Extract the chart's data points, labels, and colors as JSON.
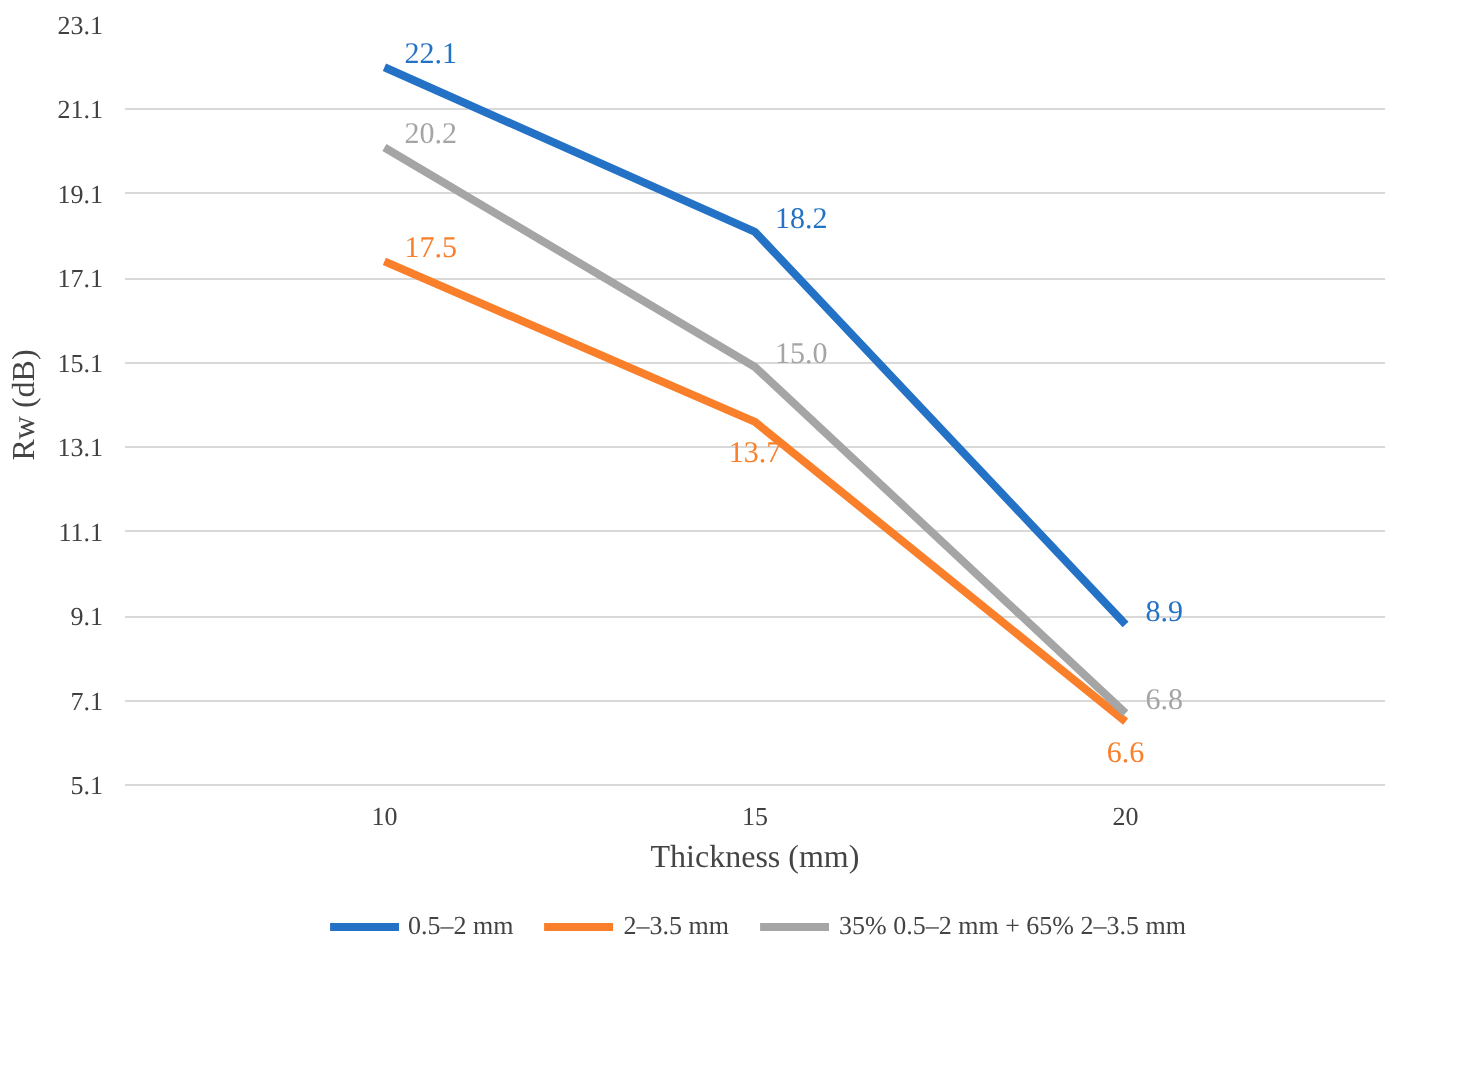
{
  "chart_data": {
    "type": "line",
    "xlabel": "Thickness (mm)",
    "ylabel": "Rw (dB)",
    "categories": [
      "10",
      "15",
      "20"
    ],
    "series": [
      {
        "name": "0.5–2 mm",
        "color": "#2372c6",
        "values": [
          22.1,
          18.2,
          8.9
        ],
        "value_labels": [
          "22.1",
          "18.2",
          "8.9"
        ]
      },
      {
        "name": "2–3.5 mm",
        "color": "#f97f2a",
        "values": [
          17.5,
          13.7,
          6.6
        ],
        "value_labels": [
          "17.5",
          "13.7",
          "6.6"
        ]
      },
      {
        "name": "35% 0.5–2 mm + 65% 2–3.5 mm",
        "color": "#a5a5a5",
        "values": [
          20.2,
          15.0,
          6.8
        ],
        "value_labels": [
          "20.2",
          "15.0",
          "6.8"
        ]
      }
    ],
    "ylim": [
      5.1,
      23.1
    ],
    "yticks": [
      {
        "value": 5.1,
        "label": "5.1"
      },
      {
        "value": 7.1,
        "label": "7.1"
      },
      {
        "value": 9.1,
        "label": "9.1"
      },
      {
        "value": 11.1,
        "label": "11.1"
      },
      {
        "value": 13.1,
        "label": "13.1"
      },
      {
        "value": 15.1,
        "label": "15.1"
      },
      {
        "value": 17.1,
        "label": "17.1"
      },
      {
        "value": 19.1,
        "label": "19.1"
      },
      {
        "value": 21.1,
        "label": "21.1"
      },
      {
        "value": 23.1,
        "label": "23.1"
      }
    ],
    "grid": "y",
    "legend": "bottom",
    "data_labels": true,
    "marker": "none",
    "line_style": "solid"
  }
}
